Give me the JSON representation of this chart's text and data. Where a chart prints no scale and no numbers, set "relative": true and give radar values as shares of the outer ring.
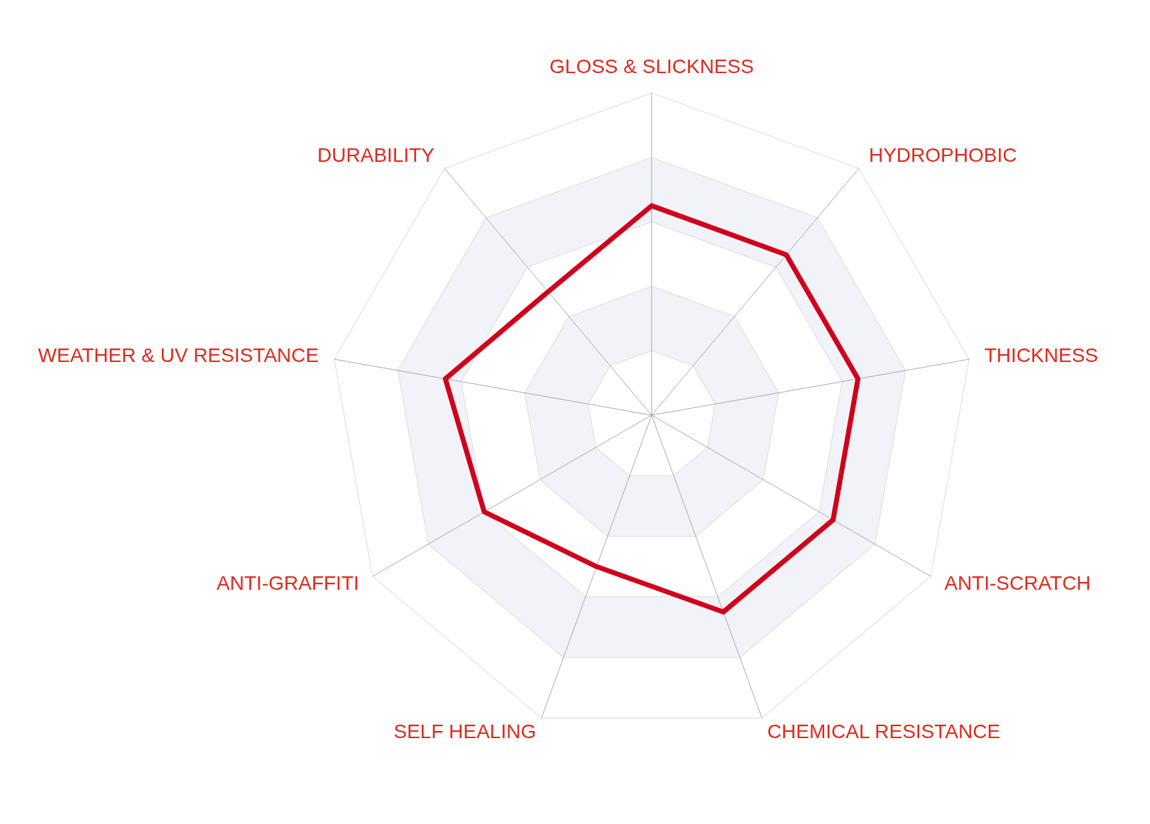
{
  "chart_data": {
    "type": "radar",
    "categories": [
      "GLOSS & SLICKNESS",
      "HYDROPHOBIC",
      "THICKNESS",
      "ANTI-SCRATCH",
      "CHEMICAL RESISTANCE",
      "SELF HEALING",
      "ANTI-GRAFFITI",
      "WEATHER & UV RESISTANCE",
      "DURABILITY"
    ],
    "series": [
      {
        "color": "#d0021b",
        "values": [
          0.65,
          0.65,
          0.65,
          0.65,
          0.65,
          0.5,
          0.6,
          0.65,
          0.5
        ]
      }
    ],
    "relative": true,
    "grid": true,
    "marker": "none",
    "line_style": "solid"
  }
}
